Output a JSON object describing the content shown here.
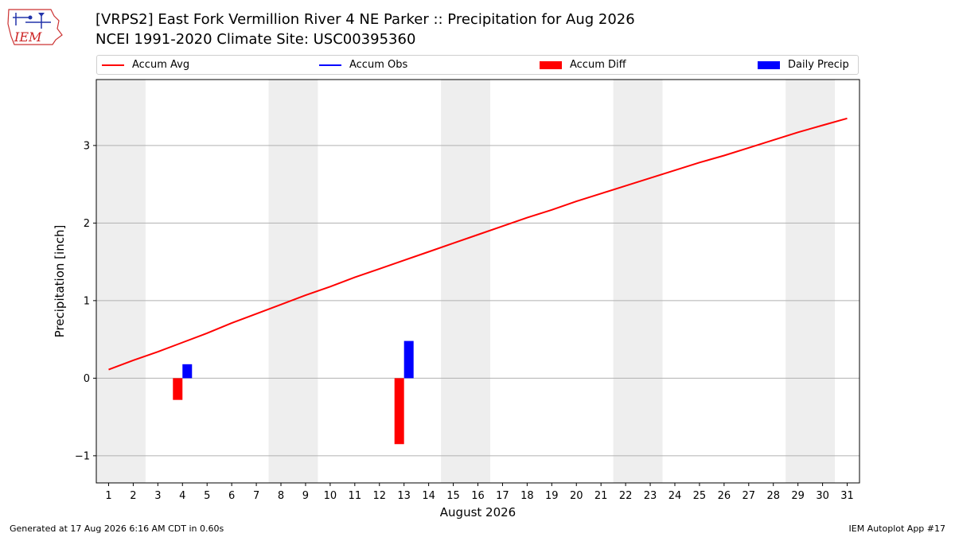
{
  "logo": {
    "text": "IEM",
    "color": "#cc2222"
  },
  "title": {
    "line1": "[VRPS2] East Fork Vermillion River 4 NE Parker :: Precipitation for Aug 2026",
    "line2": "NCEI 1991-2020 Climate Site: USC00395360"
  },
  "legend": [
    {
      "label": "Accum Avg",
      "kind": "line",
      "color": "#ff0000"
    },
    {
      "label": "Accum Obs",
      "kind": "line",
      "color": "#0000ff"
    },
    {
      "label": "Accum Diff",
      "kind": "patch",
      "color": "#ff0000"
    },
    {
      "label": "Daily Precip",
      "kind": "patch",
      "color": "#0000ff"
    }
  ],
  "chart_data": {
    "type": "line",
    "xlabel": "August 2026",
    "ylabel": "Precipitation [inch]",
    "x": [
      1,
      2,
      3,
      4,
      5,
      6,
      7,
      8,
      9,
      10,
      11,
      12,
      13,
      14,
      15,
      16,
      17,
      18,
      19,
      20,
      21,
      22,
      23,
      24,
      25,
      26,
      27,
      28,
      29,
      30,
      31
    ],
    "xticks": [
      "1",
      "2",
      "3",
      "4",
      "5",
      "6",
      "7",
      "8",
      "9",
      "10",
      "11",
      "12",
      "13",
      "14",
      "15",
      "16",
      "17",
      "18",
      "19",
      "20",
      "21",
      "22",
      "23",
      "24",
      "25",
      "26",
      "27",
      "28",
      "29",
      "30",
      "31"
    ],
    "xlim": [
      0.5,
      31.5
    ],
    "ylim": [
      -1.35,
      3.85
    ],
    "yticks": [
      -1,
      0,
      1,
      2,
      3
    ],
    "ytick_labels": [
      "−1",
      "0",
      "1",
      "2",
      "3"
    ],
    "grid": "y",
    "weekend_shading": [
      [
        0.5,
        2.5
      ],
      [
        7.5,
        9.5
      ],
      [
        14.5,
        16.5
      ],
      [
        21.5,
        23.5
      ],
      [
        28.5,
        30.5
      ]
    ],
    "shading_color": "#eeeeee",
    "series": [
      {
        "name": "Accum Avg",
        "type": "line",
        "color": "#ff0000",
        "x": [
          1,
          2,
          3,
          4,
          5,
          6,
          7,
          8,
          9,
          10,
          11,
          12,
          13,
          14,
          15,
          16,
          17,
          18,
          19,
          20,
          21,
          22,
          23,
          24,
          25,
          26,
          27,
          28,
          29,
          30,
          31
        ],
        "values": [
          0.11,
          0.23,
          0.34,
          0.46,
          0.58,
          0.71,
          0.83,
          0.95,
          1.07,
          1.18,
          1.3,
          1.41,
          1.52,
          1.63,
          1.74,
          1.85,
          1.96,
          2.07,
          2.17,
          2.28,
          2.38,
          2.48,
          2.58,
          2.68,
          2.78,
          2.87,
          2.97,
          3.07,
          3.17,
          3.26,
          3.35
        ]
      },
      {
        "name": "Accum Diff",
        "type": "bar",
        "color": "#ff0000",
        "x": [
          4,
          13
        ],
        "values": [
          -0.28,
          -0.85
        ]
      },
      {
        "name": "Daily Precip",
        "type": "bar",
        "color": "#0000ff",
        "x": [
          4,
          13
        ],
        "values": [
          0.18,
          0.48
        ]
      }
    ]
  },
  "footer": {
    "left": "Generated at 17 Aug 2026 6:16 AM CDT in 0.60s",
    "right": "IEM Autoplot App #17"
  }
}
